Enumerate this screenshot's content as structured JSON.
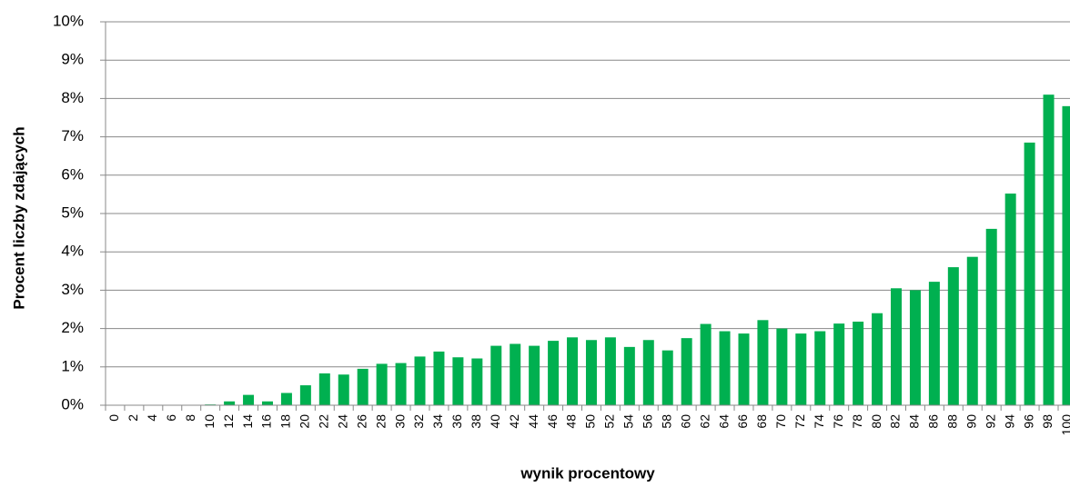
{
  "chart_data": {
    "type": "bar",
    "xlabel": "wynik procentowy",
    "ylabel": "Procent liczby zdających",
    "categories": [
      "0",
      "2",
      "4",
      "6",
      "8",
      "10",
      "12",
      "14",
      "16",
      "18",
      "20",
      "22",
      "24",
      "26",
      "28",
      "30",
      "32",
      "34",
      "36",
      "38",
      "40",
      "42",
      "44",
      "46",
      "48",
      "50",
      "52",
      "54",
      "56",
      "58",
      "60",
      "62",
      "64",
      "66",
      "68",
      "70",
      "72",
      "74",
      "76",
      "78",
      "80",
      "82",
      "84",
      "86",
      "88",
      "90",
      "92",
      "94",
      "96",
      "98",
      "100"
    ],
    "values": [
      0,
      0,
      0,
      0,
      0,
      0.02,
      0.1,
      0.27,
      0.1,
      0.32,
      0.52,
      0.83,
      0.8,
      0.95,
      1.08,
      1.1,
      1.27,
      1.4,
      1.25,
      1.22,
      1.55,
      1.6,
      1.55,
      1.68,
      1.77,
      1.7,
      1.77,
      1.52,
      1.7,
      1.43,
      1.75,
      2.12,
      1.93,
      1.87,
      2.22,
      2.0,
      1.87,
      1.93,
      2.13,
      2.18,
      2.4,
      3.05,
      3.0,
      3.22,
      3.6,
      3.87,
      4.6,
      5.52,
      6.85,
      8.1,
      7.8
    ],
    "color": "#00b050",
    "ylim": [
      0,
      10
    ],
    "yticks": [
      {
        "value": 0,
        "label": "0%"
      },
      {
        "value": 1,
        "label": "1%"
      },
      {
        "value": 2,
        "label": "2%"
      },
      {
        "value": 3,
        "label": "3%"
      },
      {
        "value": 4,
        "label": "4%"
      },
      {
        "value": 5,
        "label": "5%"
      },
      {
        "value": 6,
        "label": "6%"
      },
      {
        "value": 7,
        "label": "7%"
      },
      {
        "value": 8,
        "label": "8%"
      },
      {
        "value": 9,
        "label": "9%"
      },
      {
        "value": 10,
        "label": "10%"
      }
    ],
    "grid": true
  }
}
